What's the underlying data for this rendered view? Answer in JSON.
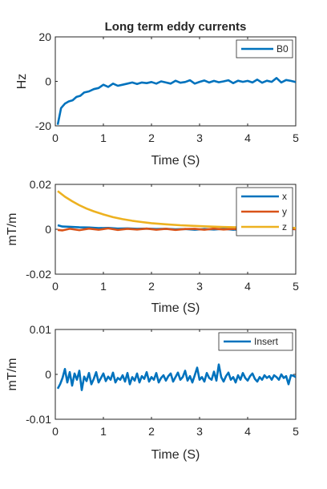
{
  "chart_data": [
    {
      "type": "line",
      "title": "Long term eddy currents",
      "xlabel": "Time (S)",
      "ylabel": "Hz",
      "xlim": [
        0,
        5
      ],
      "ylim": [
        -20,
        20
      ],
      "xticks": [
        "0",
        "1",
        "2",
        "3",
        "4",
        "5"
      ],
      "yticks": [
        "-20",
        "0",
        "20"
      ],
      "legend_position": "top-right",
      "grid": false,
      "series": [
        {
          "name": "B0",
          "color": "#0072BD",
          "x": [
            0.05,
            0.12,
            0.2,
            0.28,
            0.36,
            0.44,
            0.52,
            0.6,
            0.7,
            0.8,
            0.9,
            1.0,
            1.1,
            1.2,
            1.3,
            1.4,
            1.5,
            1.6,
            1.7,
            1.8,
            1.9,
            2.0,
            2.1,
            2.2,
            2.3,
            2.4,
            2.5,
            2.6,
            2.7,
            2.8,
            2.9,
            3.0,
            3.1,
            3.2,
            3.3,
            3.4,
            3.5,
            3.6,
            3.7,
            3.8,
            3.9,
            4.0,
            4.1,
            4.2,
            4.3,
            4.4,
            4.5,
            4.6,
            4.7,
            4.8,
            4.9,
            5.0
          ],
          "values": [
            -19.5,
            -12,
            -10,
            -9,
            -8.5,
            -7,
            -6.5,
            -5,
            -4.5,
            -3.5,
            -3,
            -1.5,
            -2.5,
            -1,
            -2,
            -1.5,
            -1,
            -0.5,
            -1.2,
            -0.5,
            -0.8,
            -0.3,
            -1,
            0,
            -0.5,
            -1,
            0.3,
            -0.6,
            -0.3,
            0.5,
            -1,
            -0.2,
            0.4,
            -0.5,
            0.2,
            -0.4,
            0,
            0.5,
            -0.8,
            0.3,
            -0.2,
            0.2,
            -0.5,
            0.8,
            -0.6,
            0.3,
            -0.2,
            1.5,
            -0.5,
            0.6,
            0.2,
            -0.3
          ]
        }
      ]
    },
    {
      "type": "line",
      "title": "",
      "xlabel": "Time (S)",
      "ylabel": "mT/m",
      "xlim": [
        0,
        5
      ],
      "ylim": [
        -0.02,
        0.02
      ],
      "xticks": [
        "0",
        "1",
        "2",
        "3",
        "4",
        "5"
      ],
      "yticks": [
        "-0.02",
        "0",
        "0.02"
      ],
      "legend_position": "top-right",
      "grid": false,
      "series": [
        {
          "name": "x",
          "color": "#0072BD",
          "x": [
            0.05,
            0.15,
            0.3,
            0.5,
            0.7,
            0.9,
            1.1,
            1.3,
            1.5,
            1.7,
            1.9,
            2.1,
            2.3,
            2.5,
            2.7,
            2.9,
            3.1,
            3.3,
            3.5,
            3.7,
            3.9,
            4.1,
            4.3,
            4.5,
            4.7,
            4.9,
            5.0
          ],
          "values": [
            0.0018,
            0.0012,
            0.0011,
            0.0009,
            0.0008,
            0.0005,
            0.0006,
            0.0003,
            0.0004,
            0.0002,
            0.0003,
            0.0001,
            0.0002,
            0.0,
            0.0001,
            -0.0002,
            0.0001,
            -0.0001,
            0.0002,
            -0.0002,
            0.0,
            -0.0003,
            0.0002,
            -0.0001,
            0.0001,
            0.0,
            0.0001
          ]
        },
        {
          "name": "y",
          "color": "#D95319",
          "x": [
            0.05,
            0.15,
            0.3,
            0.5,
            0.7,
            0.9,
            1.1,
            1.3,
            1.5,
            1.7,
            1.9,
            2.1,
            2.3,
            2.5,
            2.7,
            2.9,
            3.1,
            3.3,
            3.5,
            3.7,
            3.9,
            4.1,
            4.3,
            4.5,
            4.7,
            4.9,
            5.0
          ],
          "values": [
            -0.0003,
            -0.0005,
            0.0002,
            -0.0004,
            0.0003,
            -0.0002,
            0.0004,
            -0.0003,
            0.0002,
            -0.0001,
            0.0003,
            -0.0002,
            0.0002,
            -0.0003,
            0.0001,
            0.0002,
            -0.0002,
            0.0003,
            -0.0001,
            0.0002,
            -0.0002,
            0.0001,
            -0.0003,
            0.0002,
            -0.0001,
            0.0002,
            0.0
          ]
        },
        {
          "name": "z",
          "color": "#EDB120",
          "x": [
            0.05,
            0.2,
            0.35,
            0.5,
            0.65,
            0.8,
            1.0,
            1.2,
            1.4,
            1.6,
            1.8,
            2.0,
            2.3,
            2.6,
            2.9,
            3.2,
            3.5,
            3.8,
            4.1,
            4.4,
            4.7,
            5.0
          ],
          "values": [
            0.017,
            0.0145,
            0.0125,
            0.0107,
            0.0092,
            0.008,
            0.0066,
            0.0054,
            0.0045,
            0.0038,
            0.0032,
            0.0027,
            0.0022,
            0.0018,
            0.0015,
            0.0012,
            0.001,
            0.0009,
            0.0008,
            0.0007,
            0.0006,
            0.0006
          ]
        }
      ]
    },
    {
      "type": "line",
      "title": "",
      "xlabel": "Time (S)",
      "ylabel": "mT/m",
      "xlim": [
        0,
        5
      ],
      "ylim": [
        -0.01,
        0.01
      ],
      "xticks": [
        "0",
        "1",
        "2",
        "3",
        "4",
        "5"
      ],
      "yticks": [
        "-0.01",
        "0",
        "0.01"
      ],
      "legend_position": "top-right",
      "grid": false,
      "series": [
        {
          "name": "Insert",
          "color": "#0072BD",
          "x": [
            0.05,
            0.1,
            0.15,
            0.2,
            0.25,
            0.3,
            0.35,
            0.4,
            0.45,
            0.5,
            0.55,
            0.6,
            0.65,
            0.7,
            0.75,
            0.8,
            0.85,
            0.9,
            0.95,
            1.0,
            1.05,
            1.1,
            1.15,
            1.2,
            1.25,
            1.3,
            1.35,
            1.4,
            1.45,
            1.5,
            1.55,
            1.6,
            1.65,
            1.7,
            1.75,
            1.8,
            1.85,
            1.9,
            1.95,
            2.0,
            2.05,
            2.1,
            2.15,
            2.2,
            2.25,
            2.3,
            2.35,
            2.4,
            2.45,
            2.5,
            2.55,
            2.6,
            2.65,
            2.7,
            2.75,
            2.8,
            2.85,
            2.9,
            2.95,
            3.0,
            3.05,
            3.1,
            3.15,
            3.2,
            3.25,
            3.3,
            3.35,
            3.4,
            3.45,
            3.5,
            3.55,
            3.6,
            3.65,
            3.7,
            3.75,
            3.8,
            3.85,
            3.9,
            3.95,
            4.0,
            4.05,
            4.1,
            4.15,
            4.2,
            4.25,
            4.3,
            4.35,
            4.4,
            4.45,
            4.5,
            4.55,
            4.6,
            4.65,
            4.7,
            4.75,
            4.8,
            4.85,
            4.9,
            4.95,
            5.0
          ],
          "values": [
            -0.0032,
            -0.0022,
            -0.0008,
            0.0012,
            -0.0018,
            0.0005,
            -0.0025,
            0.0002,
            -0.0012,
            0.0008,
            -0.0035,
            -0.0005,
            -0.0015,
            0.0003,
            -0.0022,
            -0.001,
            0.0005,
            -0.0018,
            -0.0008,
            0.0002,
            -0.0015,
            -0.0005,
            -0.0012,
            0.0004,
            -0.0018,
            -0.0008,
            -0.0012,
            -0.0002,
            -0.0016,
            0.0003,
            -0.0022,
            -0.0006,
            -0.0014,
            0.0002,
            -0.0018,
            -0.0004,
            -0.001,
            0.0005,
            -0.0016,
            -0.0006,
            -0.0012,
            0.0003,
            -0.0018,
            -0.0008,
            -0.0002,
            -0.0014,
            -0.0004,
            0.0002,
            -0.0016,
            -0.0006,
            0.0004,
            -0.0012,
            -0.0006,
            0.0008,
            -0.0014,
            -0.0004,
            -0.0018,
            -0.0002,
            0.0015,
            -0.0012,
            -0.0006,
            -0.0016,
            0.0003,
            -0.0008,
            -0.0012,
            0.0006,
            -0.0014,
            0.0022,
            -0.0006,
            -0.0016,
            -0.0004,
            0.0004,
            -0.0012,
            -0.0006,
            -0.0018,
            -0.0002,
            -0.0012,
            0.0003,
            -0.0008,
            -0.0014,
            -0.0004,
            0.0002,
            -0.001,
            -0.0016,
            -0.0006,
            -0.0012,
            -0.0002,
            -0.0008,
            -0.0004,
            -0.0012,
            -0.0002,
            -0.0006,
            -0.0012,
            0.0,
            -0.0008,
            -0.0004,
            -0.0022,
            -0.0002,
            -0.0003,
            -0.0006
          ]
        }
      ]
    }
  ]
}
